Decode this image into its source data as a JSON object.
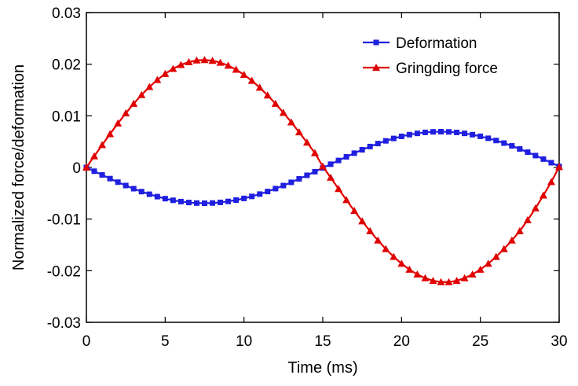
{
  "chart_data": {
    "type": "line",
    "title": "",
    "xlabel": "Time (ms)",
    "ylabel": "Normalized force/deformation",
    "xlim": [
      0,
      30
    ],
    "ylim": [
      -0.03,
      0.03
    ],
    "x_ticks": [
      "0",
      "5",
      "10",
      "15",
      "20",
      "25",
      "30"
    ],
    "y_ticks": [
      "-0.03",
      "-0.02",
      "-0.01",
      "0",
      "0.01",
      "0.02",
      "0.03"
    ],
    "grid": false,
    "legend_position": "top-right",
    "series": [
      {
        "name": "Deformation",
        "color": "#1f1fe0",
        "marker": "square",
        "x": [
          0,
          0.5,
          1,
          1.5,
          2,
          2.5,
          3,
          3.5,
          4,
          4.5,
          5,
          5.5,
          6,
          6.5,
          7,
          7.5,
          8,
          8.5,
          9,
          9.5,
          10,
          10.5,
          11,
          11.5,
          12,
          12.5,
          13,
          13.5,
          14,
          14.5,
          15,
          15.5,
          16,
          16.5,
          17,
          17.5,
          18,
          18.5,
          19,
          19.5,
          20,
          20.5,
          21,
          21.5,
          22,
          22.5,
          23,
          23.5,
          24,
          24.5,
          25,
          25.5,
          26,
          26.5,
          27,
          27.5,
          28,
          28.5,
          29,
          29.5,
          30
        ],
        "y": [
          0,
          -0.00073,
          -0.00145,
          -0.00216,
          -0.00285,
          -0.0035,
          -0.00411,
          -0.00468,
          -0.00519,
          -0.00565,
          -0.00604,
          -0.00636,
          -0.00661,
          -0.00679,
          -0.0069,
          -0.00693,
          -0.00689,
          -0.00677,
          -0.00658,
          -0.00632,
          -0.006,
          -0.00561,
          -0.00516,
          -0.00466,
          -0.0041,
          -0.00351,
          -0.00288,
          -0.00221,
          -0.00152,
          -0.00082,
          -0.0001,
          0.00063,
          0.00135,
          0.00206,
          0.00276,
          0.00343,
          0.00405,
          0.00463,
          0.00515,
          0.00562,
          0.00602,
          0.00635,
          0.0066,
          0.00679,
          0.0069,
          0.00693,
          0.00689,
          0.00678,
          0.0066,
          0.00635,
          0.00603,
          0.00565,
          0.00522,
          0.00472,
          0.00418,
          0.00359,
          0.00296,
          0.0023,
          0.00162,
          0.00092,
          0.0002
        ]
      },
      {
        "name": "Gringding force",
        "color": "#e00000",
        "marker": "triangle",
        "x": [
          0,
          0.5,
          1,
          1.5,
          2,
          2.5,
          3,
          3.5,
          4,
          4.5,
          5,
          5.5,
          6,
          6.5,
          7,
          7.5,
          8,
          8.5,
          9,
          9.5,
          10,
          10.5,
          11,
          11.5,
          12,
          12.5,
          13,
          13.5,
          14,
          14.5,
          15,
          15.5,
          16,
          16.5,
          17,
          17.5,
          18,
          18.5,
          19,
          19.5,
          20,
          20.5,
          21,
          21.5,
          22,
          22.5,
          23,
          23.5,
          24,
          24.5,
          25,
          25.5,
          26,
          26.5,
          27,
          27.5,
          28,
          28.5,
          29,
          29.5,
          30
        ],
        "y": [
          0,
          0.00219,
          0.00436,
          0.00648,
          0.00854,
          0.0105,
          0.01235,
          0.01405,
          0.0156,
          0.01697,
          0.01815,
          0.01912,
          0.01988,
          0.02042,
          0.02074,
          0.02083,
          0.02068,
          0.02032,
          0.01974,
          0.01895,
          0.01797,
          0.01681,
          0.01547,
          0.01397,
          0.01235,
          0.01061,
          0.00876,
          0.00683,
          0.00483,
          0.0028,
          0.0002,
          -0.00197,
          -0.00415,
          -0.0063,
          -0.00839,
          -0.01041,
          -0.01232,
          -0.01413,
          -0.01579,
          -0.0173,
          -0.01864,
          -0.01978,
          -0.02072,
          -0.02144,
          -0.02194,
          -0.0222,
          -0.0222,
          -0.02194,
          -0.02144,
          -0.02072,
          -0.01978,
          -0.01864,
          -0.0173,
          -0.01579,
          -0.01413,
          -0.01232,
          -0.0102,
          -0.0079,
          -0.0054,
          -0.0028,
          0.0001
        ]
      }
    ]
  }
}
